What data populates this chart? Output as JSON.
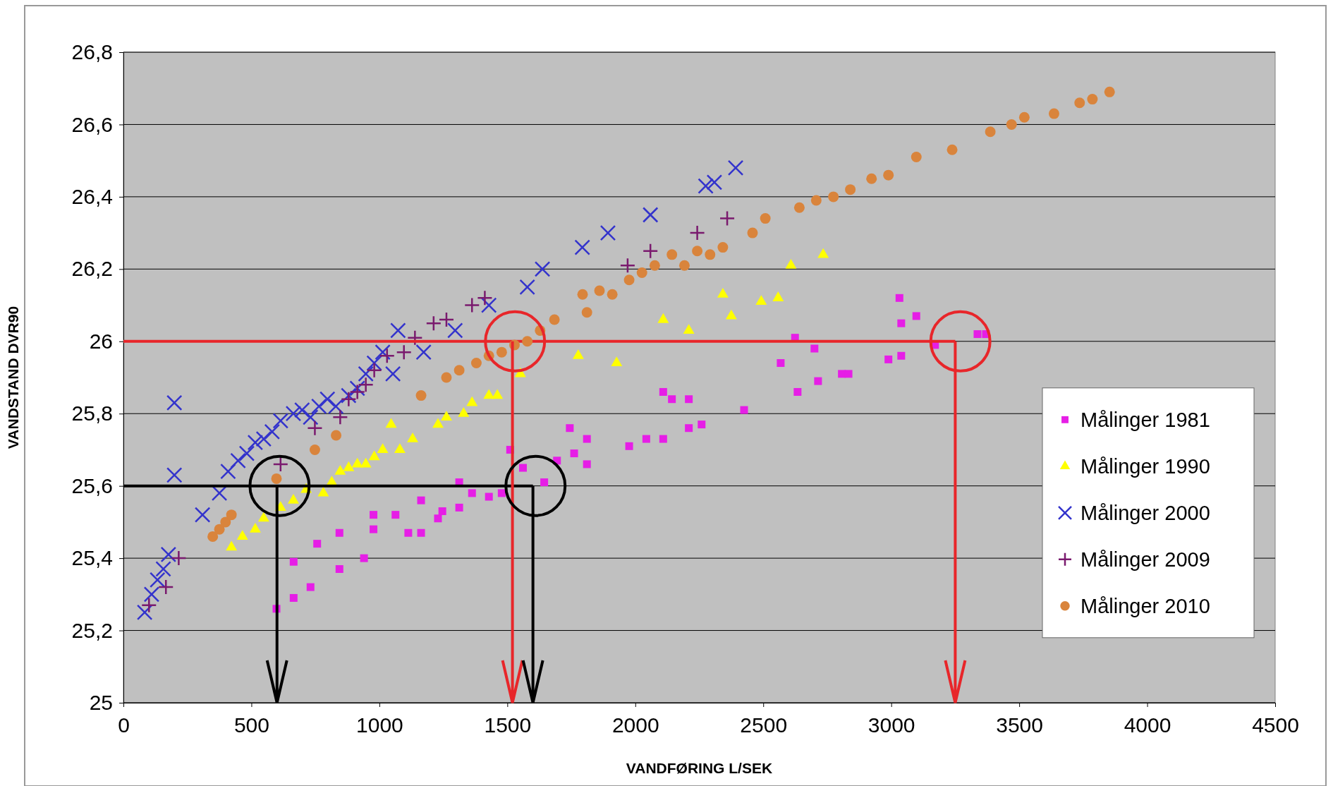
{
  "chart_data": {
    "type": "scatter",
    "xlabel": "VANDFØRING L/SEK",
    "ylabel": "VANDSTAND DVR90",
    "xlim": [
      0,
      4500
    ],
    "xticks": [
      0,
      500,
      1000,
      1500,
      2000,
      2500,
      3000,
      3500,
      4000,
      4500
    ],
    "ylim": [
      25,
      26.8
    ],
    "yticks": [
      25,
      {
        "value": 25.2,
        "label": "25,2"
      },
      {
        "value": 25.4,
        "label": "25,4"
      },
      {
        "value": 25.6,
        "label": "25,6"
      },
      {
        "value": 25.8,
        "label": "25,8"
      },
      26,
      {
        "value": 26.2,
        "label": "26,2"
      },
      {
        "value": 26.4,
        "label": "26,4"
      },
      {
        "value": 26.6,
        "label": "26,6"
      },
      {
        "value": 26.8,
        "label": "26,8"
      }
    ],
    "grid": "y",
    "legend": "bottom right",
    "series": [
      {
        "name": "Målinger 1981",
        "color": "#e61ee6",
        "marker": "square",
        "x": [
          598,
          665,
          731,
          665,
          757,
          844,
          844,
          940,
          977,
          977,
          1063,
          1113,
          1163,
          1163,
          1229,
          1246,
          1312,
          1312,
          1362,
          1428,
          1478,
          1511,
          1561,
          1644,
          1694,
          1744,
          1761,
          1811,
          1811,
          1976,
          2043,
          2109,
          2109,
          2143,
          2209,
          2209,
          2259,
          2425,
          2568,
          2624,
          2634,
          2700,
          2714,
          2807,
          2833,
          2989,
          3039,
          3032,
          3039,
          3098,
          3171,
          3337,
          3370
        ],
        "values": [
          25.26,
          25.29,
          25.32,
          25.39,
          25.44,
          25.37,
          25.47,
          25.4,
          25.48,
          25.52,
          25.52,
          25.47,
          25.47,
          25.56,
          25.51,
          25.53,
          25.54,
          25.61,
          25.58,
          25.57,
          25.58,
          25.7,
          25.65,
          25.61,
          25.67,
          25.76,
          25.69,
          25.73,
          25.66,
          25.71,
          25.73,
          25.73,
          25.86,
          25.84,
          25.84,
          25.76,
          25.77,
          25.81,
          25.94,
          26.01,
          25.86,
          25.98,
          25.89,
          25.91,
          25.91,
          25.95,
          25.96,
          26.12,
          26.05,
          26.07,
          25.99,
          26.02,
          26.02
        ]
      },
      {
        "name": "Målinger 1990",
        "color": "#ffff00",
        "marker": "triangle",
        "x": [
          422,
          465,
          515,
          548,
          614,
          664,
          714,
          781,
          814,
          847,
          880,
          914,
          947,
          980,
          1013,
          1046,
          1080,
          1130,
          1229,
          1262,
          1329,
          1362,
          1428,
          1461,
          1551,
          1777,
          1927,
          2109,
          2209,
          2342,
          2375,
          2492,
          2558,
          2608,
          2734
        ],
        "values": [
          25.43,
          25.46,
          25.48,
          25.51,
          25.54,
          25.56,
          25.59,
          25.58,
          25.61,
          25.64,
          25.65,
          25.66,
          25.66,
          25.68,
          25.7,
          25.77,
          25.7,
          25.73,
          25.77,
          25.79,
          25.8,
          25.83,
          25.85,
          25.85,
          25.91,
          25.96,
          25.94,
          26.06,
          26.03,
          26.13,
          26.07,
          26.11,
          26.12,
          26.21,
          26.24
        ]
      },
      {
        "name": "Målinger 2000",
        "color": "#3333cc",
        "marker": "x",
        "x": [
          83,
          110,
          133,
          156,
          176,
          199,
          199,
          309,
          375,
          409,
          448,
          482,
          515,
          548,
          581,
          614,
          664,
          698,
          731,
          764,
          797,
          830,
          880,
          914,
          947,
          980,
          1013,
          1053,
          1073,
          1173,
          1296,
          1428,
          1578,
          1637,
          1793,
          1893,
          2059,
          2275,
          2309,
          2392
        ],
        "values": [
          25.25,
          25.3,
          25.34,
          25.37,
          25.41,
          25.63,
          25.83,
          25.52,
          25.58,
          25.64,
          25.67,
          25.69,
          25.72,
          25.73,
          25.75,
          25.78,
          25.8,
          25.81,
          25.79,
          25.82,
          25.84,
          25.82,
          25.85,
          25.87,
          25.91,
          25.94,
          25.97,
          25.91,
          26.03,
          25.97,
          26.03,
          26.1,
          26.15,
          26.2,
          26.26,
          26.3,
          26.35,
          26.43,
          26.44,
          26.48
        ]
      },
      {
        "name": "Målinger 2009",
        "color": "#7a1a6e",
        "marker": "cross",
        "x": [
          100,
          166,
          216,
          614,
          748,
          847,
          880,
          914,
          947,
          980,
          1030,
          1096,
          1139,
          1212,
          1262,
          1362,
          1412,
          1970,
          2059,
          2242,
          2359
        ],
        "values": [
          25.27,
          25.32,
          25.4,
          25.66,
          25.76,
          25.79,
          25.84,
          25.86,
          25.88,
          25.92,
          25.96,
          25.97,
          26.01,
          26.05,
          26.06,
          26.1,
          26.12,
          26.21,
          26.25,
          26.3,
          26.34
        ]
      },
      {
        "type": "line",
        "color": "#e8262a",
        "x": [
          0,
          3250
        ],
        "values": [
          26,
          26
        ]
      },
      {
        "type": "line",
        "color": "#000000",
        "x": [
          0,
          1600
        ],
        "values": [
          25.6,
          25.6
        ]
      },
      {
        "name": "Målinger 2010",
        "color": "#d9843c",
        "marker": "circle",
        "x": [
          349,
          375,
          399,
          422,
          598,
          748,
          831,
          1163,
          1262,
          1312,
          1379,
          1428,
          1478,
          1528,
          1578,
          1628,
          1684,
          1794,
          1811,
          1860,
          1910,
          1976,
          2026,
          2076,
          2143,
          2192,
          2242,
          2292,
          2342,
          2458,
          2508,
          2641,
          2707,
          2774,
          2840,
          2923,
          2989,
          3098,
          3238,
          3387,
          3470,
          3520,
          3636,
          3736,
          3786,
          3853
        ],
        "values": [
          25.46,
          25.48,
          25.5,
          25.52,
          25.62,
          25.7,
          25.74,
          25.85,
          25.9,
          25.92,
          25.94,
          25.96,
          25.97,
          25.99,
          26,
          26.03,
          26.06,
          26.13,
          26.08,
          26.14,
          26.13,
          26.17,
          26.19,
          26.21,
          26.24,
          26.21,
          26.25,
          26.24,
          26.26,
          26.3,
          26.34,
          26.37,
          26.39,
          26.4,
          26.42,
          26.45,
          26.46,
          26.51,
          26.53,
          26.58,
          26.6,
          26.62,
          26.63,
          26.66,
          26.67,
          26.69
        ]
      }
    ]
  }
}
